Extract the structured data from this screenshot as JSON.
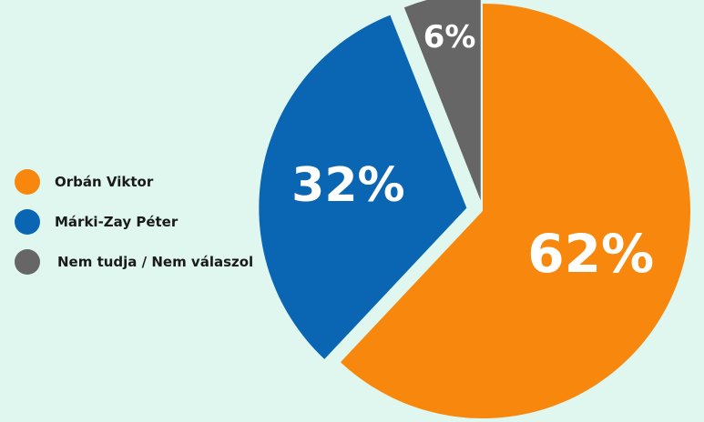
{
  "chart_data": {
    "type": "pie",
    "slices": [
      {
        "name": "Orbán Viktor",
        "value": 62,
        "label": "62%",
        "color": "#f7870d"
      },
      {
        "name": "Márki-Zay Péter",
        "value": 32,
        "label": "32%",
        "color": "#0a66b3"
      },
      {
        "name": "Nem tudja / Nem válaszol",
        "value": 6,
        "label": "6%",
        "color": "#666666"
      }
    ],
    "legend_position": "left"
  }
}
